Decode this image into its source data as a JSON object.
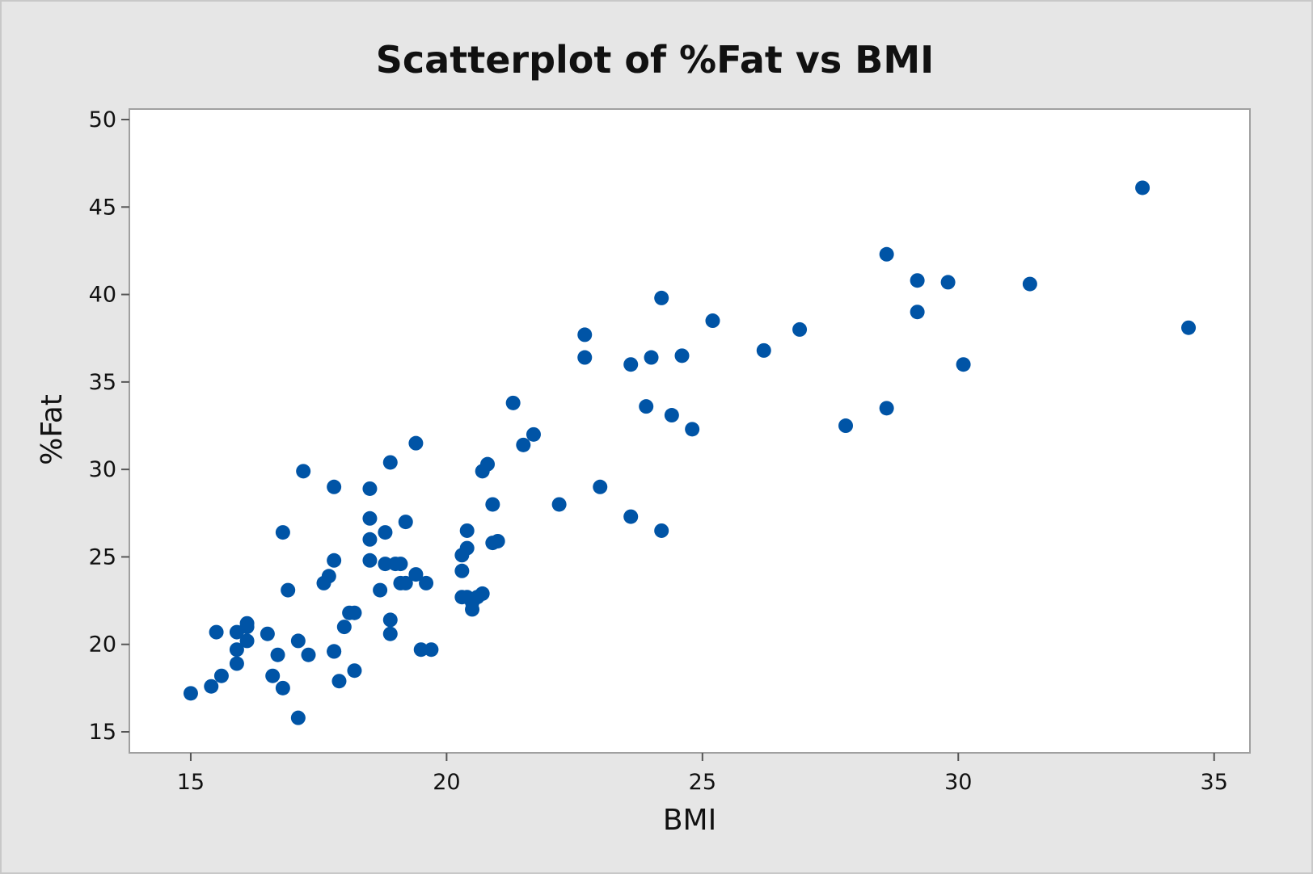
{
  "chart_data": {
    "type": "scatter",
    "title": "Scatterplot of %Fat vs BMI",
    "xlabel": "BMI",
    "ylabel": "%Fat",
    "xlim": [
      13.8,
      35.7
    ],
    "ylim": [
      13.8,
      50.6
    ],
    "xticks": [
      15,
      20,
      25,
      30,
      35
    ],
    "yticks": [
      15,
      20,
      25,
      30,
      35,
      40,
      45,
      50
    ],
    "grid": false,
    "legend": "none",
    "marker_color": "#0054a6",
    "series": [
      {
        "x": [
          15.0,
          15.4,
          15.5,
          15.6,
          15.9,
          15.9,
          15.9,
          16.1,
          16.1,
          16.1,
          16.5,
          16.6,
          16.7,
          16.8,
          16.8,
          16.9,
          17.1,
          17.1,
          17.2,
          17.3,
          17.6,
          17.7,
          17.8,
          17.8,
          17.8,
          17.8,
          17.9,
          18.0,
          18.1,
          18.2,
          18.2,
          18.5,
          18.5,
          18.5,
          18.5,
          18.8,
          18.7,
          18.8,
          18.9,
          18.9,
          18.9,
          19.0,
          19.1,
          19.1,
          19.2,
          19.2,
          19.4,
          19.4,
          19.5,
          19.6,
          19.7,
          20.3,
          20.3,
          20.3,
          20.4,
          20.4,
          20.4,
          20.5,
          20.6,
          20.5,
          20.7,
          20.7,
          20.8,
          20.9,
          20.9,
          21.0,
          21.3,
          21.5,
          21.7,
          22.2,
          22.7,
          22.7,
          23.0,
          23.6,
          23.6,
          23.9,
          24.0,
          24.2,
          24.2,
          24.4,
          24.6,
          24.8,
          25.2,
          26.2,
          26.9,
          27.8,
          28.6,
          28.6,
          29.2,
          29.2,
          29.8,
          30.1,
          31.4,
          33.6,
          34.5
        ],
        "y": [
          17.2,
          17.6,
          20.7,
          18.2,
          20.7,
          19.7,
          18.9,
          21.2,
          21.0,
          20.2,
          20.6,
          18.2,
          19.4,
          26.4,
          17.5,
          23.1,
          15.8,
          20.2,
          29.9,
          19.4,
          23.5,
          23.9,
          29.0,
          24.8,
          19.6,
          19.6,
          17.9,
          21.0,
          21.8,
          21.8,
          18.5,
          28.9,
          27.2,
          26.0,
          24.8,
          24.6,
          23.1,
          26.4,
          30.4,
          21.4,
          20.6,
          24.6,
          24.6,
          23.5,
          27.0,
          23.5,
          31.5,
          24.0,
          19.7,
          23.5,
          19.7,
          25.1,
          24.2,
          22.7,
          26.5,
          25.5,
          22.7,
          22.0,
          22.7,
          22.4,
          22.9,
          29.9,
          30.3,
          28.0,
          25.8,
          25.9,
          33.8,
          31.4,
          32.0,
          28.0,
          36.4,
          37.7,
          29.0,
          36.0,
          27.3,
          33.6,
          36.4,
          39.8,
          26.5,
          33.1,
          36.5,
          32.3,
          38.5,
          36.8,
          38.0,
          32.5,
          42.3,
          33.5,
          39.0,
          40.8,
          40.7,
          36.0,
          40.6,
          46.1,
          38.1
        ]
      }
    ]
  }
}
